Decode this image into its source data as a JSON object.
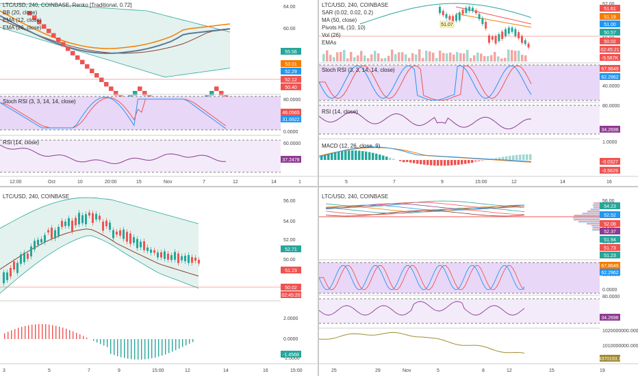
{
  "colors": {
    "up": "#26a69a",
    "down": "#ef5350",
    "rsiLine": "#8e3a92",
    "stochK": "#2196f3",
    "stochD": "#ef5350",
    "bbFill": "#e3f2ee",
    "bbLine": "#26a69a",
    "purpleFill": "#e8d7f7",
    "purpleLight": "#f3ebfa",
    "ma": "#f57c00",
    "ema": "#5b7a99",
    "midline": "#c0392b",
    "volDown": "#f4a5a3",
    "volUp": "#9fd7d1"
  },
  "panels": [
    {
      "id": "tl",
      "legend": [
        "LTC/USD, 240, COINBASE, Renko [Traditional, 0.72]",
        "BB (20, close)",
        "EMA (12, close)",
        "EMA (26, close)"
      ],
      "subLegends": [
        "Stoch RSI (3, 3, 14, 14, close)",
        "RSI (14, close)"
      ],
      "priceTicks": [
        "64.00",
        "60.00",
        "56.00"
      ],
      "priceBadges": [
        {
          "label": "55.56",
          "color": "#26a69a"
        },
        {
          "label": "53.01",
          "color": "#f57c00"
        },
        {
          "label": "52.29",
          "color": "#2196f3"
        },
        {
          "label": "52.12",
          "color": "#ef5350"
        },
        {
          "label": "50.40",
          "color": "#ef5350"
        }
      ],
      "stochTicks": [
        "80.0000",
        "0.0000"
      ],
      "stochBadges": [
        {
          "label": "46.0565",
          "color": "#ef5350"
        },
        {
          "label": "31.6922",
          "color": "#2196f3"
        }
      ],
      "rsiTicks": [
        "60.0000",
        "40.0000"
      ],
      "rsiBadges": [
        {
          "label": "37.2478",
          "color": "#8e3a92"
        }
      ],
      "xTicks": [
        "12:00",
        "Oct",
        "10",
        "20:00",
        "15",
        "Nov",
        "7",
        "12",
        "14",
        "1"
      ]
    },
    {
      "id": "tr",
      "legend": [
        "LTC/USD, 240, COINBASE",
        "SAR (0.02, 0.02, 0.2)",
        "MA (50, close)",
        "Pivots HL (10, 10)",
        "Vol (26)",
        "EMAs"
      ],
      "subLegends": [
        "Stoch RSI (3, 3, 14, 14, close)",
        "RSI (14, close)",
        "MACD (12, 26, close, 9)"
      ],
      "priceTicks": [
        "52.00",
        "50.00"
      ],
      "priceBadges": [
        {
          "label": "51.61",
          "color": "#ef5350"
        },
        {
          "label": "51.19",
          "color": "#f57c00"
        },
        {
          "label": "51.00",
          "color": "#2196f3"
        },
        {
          "label": "50.57",
          "color": "#26a69a"
        },
        {
          "label": "50.02",
          "color": "#ef5350"
        },
        {
          "label": "02:45:21",
          "color": "#ef5350"
        },
        {
          "label": "-5.567K",
          "color": "#ef5350"
        }
      ],
      "pivotLabel": "51.07",
      "stochTicks": [
        "40.0000"
      ],
      "stochBadges": [
        {
          "label": "67.8649",
          "color": "#ef5350"
        },
        {
          "label": "62.2962",
          "color": "#2196f3"
        }
      ],
      "rsiTicks": [
        "80.0000"
      ],
      "rsiBadges": [
        {
          "label": "34.2696",
          "color": "#8e3a92"
        }
      ],
      "macdTicks": [
        "1.0000"
      ],
      "macdBadges": [
        {
          "label": "-0.0327",
          "color": "#ef5350"
        },
        {
          "label": "-0.5629",
          "color": "#ef5350"
        }
      ],
      "xTicks": [
        "5",
        "7",
        "9",
        "15:00",
        "12",
        "14",
        "16"
      ]
    },
    {
      "id": "bl",
      "legend": [
        "LTC/USD, 240, COINBASE"
      ],
      "priceTicks": [
        "56.00",
        "54.00",
        "52.00",
        "50.00"
      ],
      "priceBadges": [
        {
          "label": "52.71",
          "color": "#26a69a"
        },
        {
          "label": "51.23",
          "color": "#ef5350"
        },
        {
          "label": "50.02",
          "color": "#ef5350"
        },
        {
          "label": "02:45:20",
          "color": "#ef5350"
        }
      ],
      "oscTicks": [
        "2.0000",
        "0.0000",
        "-2.0000"
      ],
      "oscBadges": [
        {
          "label": "-1.4568",
          "color": "#26a69a"
        }
      ],
      "xTicks": [
        "3",
        "5",
        "7",
        "9",
        "15:00",
        "12",
        "14",
        "16",
        "15:00"
      ]
    },
    {
      "id": "br",
      "legend": [
        "LTC/USD, 240, COINBASE"
      ],
      "priceTicks": [
        "56.00",
        "55.00",
        "54.00",
        "53.00"
      ],
      "priceBadges": [
        {
          "label": "54.23",
          "color": "#26a69a"
        },
        {
          "label": "52.52",
          "color": "#2196f3"
        },
        {
          "label": "52.08",
          "color": "#ef5350"
        },
        {
          "label": "52.37",
          "color": "#8e3a92"
        },
        {
          "label": "51.94",
          "color": "#26a69a"
        },
        {
          "label": "51.73",
          "color": "#ef5350"
        },
        {
          "label": "51.23",
          "color": "#26a69a"
        }
      ],
      "stochTicks": [
        "50.0000",
        "0.0000"
      ],
      "stochBadges": [
        {
          "label": "67.8649",
          "color": "#f57c00"
        },
        {
          "label": "62.2962",
          "color": "#2196f3"
        }
      ],
      "rsiTicks": [
        "80.0000"
      ],
      "rsiBadges": [
        {
          "label": "34.2696",
          "color": "#8e3a92"
        }
      ],
      "volTicks": [
        "1020000000.0000",
        "1010000000.0000"
      ],
      "volBadges": [
        {
          "label": "1004370193.1992",
          "color": "#a08a2e"
        }
      ],
      "xTicks": [
        "25",
        "29",
        "Nov",
        "5",
        "8",
        "12",
        "15",
        "19"
      ]
    }
  ]
}
